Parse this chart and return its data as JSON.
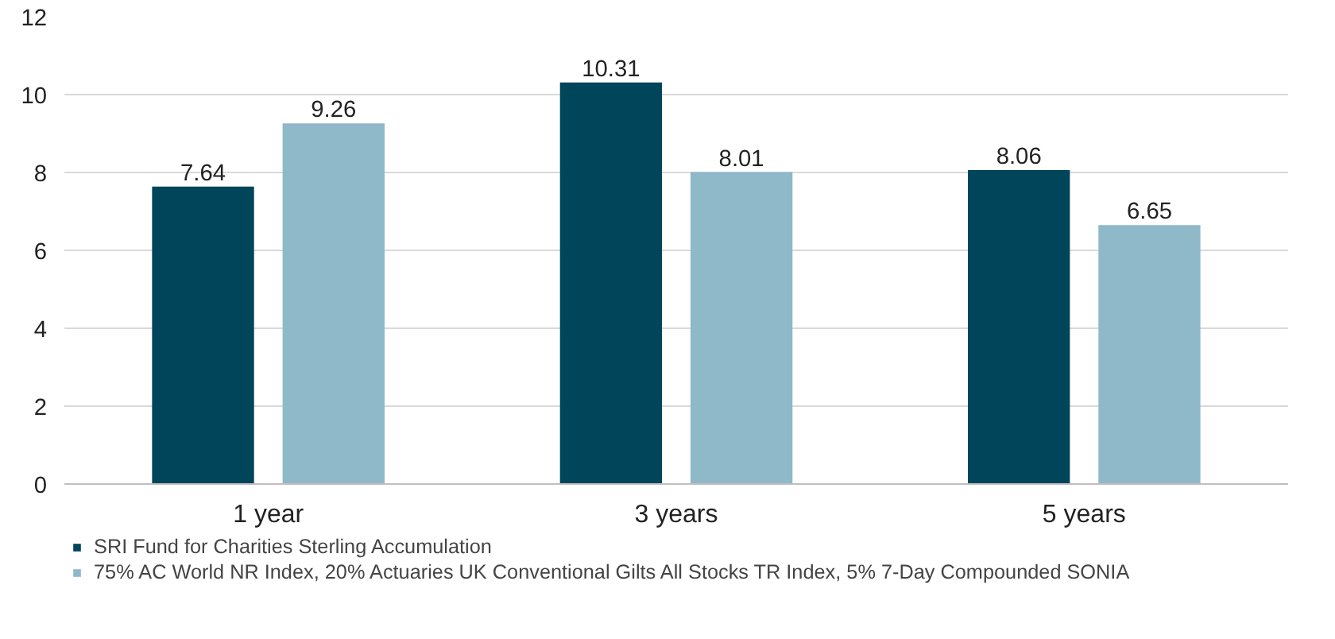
{
  "chart_data": {
    "type": "bar",
    "categories": [
      "1 year",
      "3 years",
      "5 years"
    ],
    "series": [
      {
        "name": "SRI Fund for Charities Sterling Accumulation",
        "color": "#01455a",
        "values": [
          7.64,
          10.31,
          8.06
        ]
      },
      {
        "name": "75% AC World NR Index, 20% Actuaries UK Conventional Gilts All Stocks TR Index, 5% 7-Day Compounded SONIA",
        "color": "#8fb8c9",
        "values": [
          9.26,
          8.01,
          6.65
        ]
      }
    ],
    "ylim": [
      0,
      12
    ],
    "yticks": [
      0,
      2,
      4,
      6,
      8,
      10,
      12
    ],
    "grid": "y",
    "data_labels": true,
    "legend": "bottom"
  }
}
